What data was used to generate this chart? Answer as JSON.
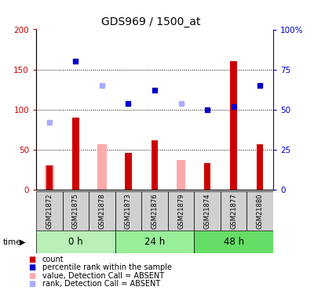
{
  "title": "GDS969 / 1500_at",
  "samples": [
    "GSM21872",
    "GSM21875",
    "GSM21878",
    "GSM21873",
    "GSM21876",
    "GSM21879",
    "GSM21874",
    "GSM21877",
    "GSM21880"
  ],
  "count_values": [
    30,
    90,
    null,
    46,
    62,
    null,
    33,
    160,
    57
  ],
  "rank_values": [
    null,
    80,
    null,
    54,
    62,
    null,
    50,
    52,
    65
  ],
  "absent_value_values": [
    30,
    null,
    57,
    null,
    null,
    37,
    null,
    null,
    null
  ],
  "absent_rank_values": [
    42,
    null,
    65,
    null,
    null,
    54,
    null,
    null,
    null
  ],
  "ylim_left": [
    0,
    200
  ],
  "ylim_right": [
    0,
    100
  ],
  "yticks_left": [
    0,
    50,
    100,
    150,
    200
  ],
  "yticks_right": [
    0,
    25,
    50,
    75,
    100
  ],
  "ytick_labels_left": [
    "0",
    "50",
    "100",
    "150",
    "200"
  ],
  "ytick_labels_right": [
    "0",
    "25",
    "50",
    "75",
    "100%"
  ],
  "count_color": "#cc0000",
  "rank_color": "#0000cc",
  "absent_value_color": "#ffaaaa",
  "absent_rank_color": "#aaaaff",
  "left_axis_color": "#cc0000",
  "right_axis_color": "#0000cc",
  "background_color": "#ffffff",
  "group_spans": [
    [
      0,
      3,
      "0 h"
    ],
    [
      3,
      6,
      "24 h"
    ],
    [
      6,
      9,
      "48 h"
    ]
  ],
  "group_colors": [
    "#b8f0b8",
    "#99ee99",
    "#66dd66"
  ]
}
